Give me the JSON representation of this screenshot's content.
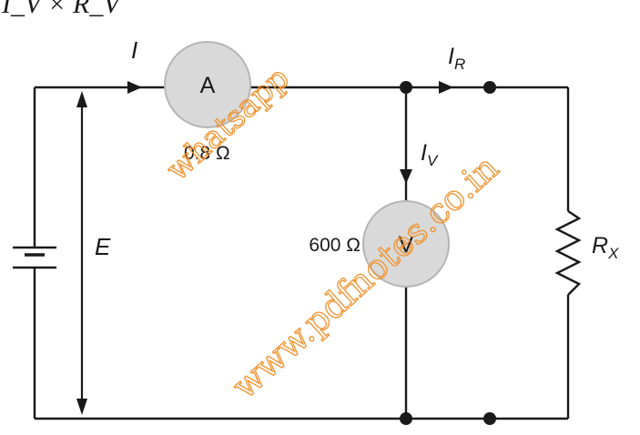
{
  "header_formula": {
    "text": "I_V × R_V"
  },
  "currents": {
    "total": {
      "symbol": "I",
      "sub": ""
    },
    "resistor": {
      "symbol": "I",
      "sub": "R"
    },
    "voltmeter": {
      "symbol": "I",
      "sub": "V"
    }
  },
  "ammeter": {
    "letter": "A",
    "resistance": "0.8 Ω"
  },
  "voltmeter": {
    "letter": "V",
    "resistance": "600 Ω"
  },
  "source": {
    "label": "E"
  },
  "resistor": {
    "symbol": "R",
    "sub": "X"
  },
  "watermark": {
    "line1": "whatsapp",
    "line2": "www.pdfnotes.co.in"
  },
  "colors": {
    "wire": "#1a1a1a",
    "meter_fill": "#d9d9d9",
    "watermark": "#f0932f"
  }
}
